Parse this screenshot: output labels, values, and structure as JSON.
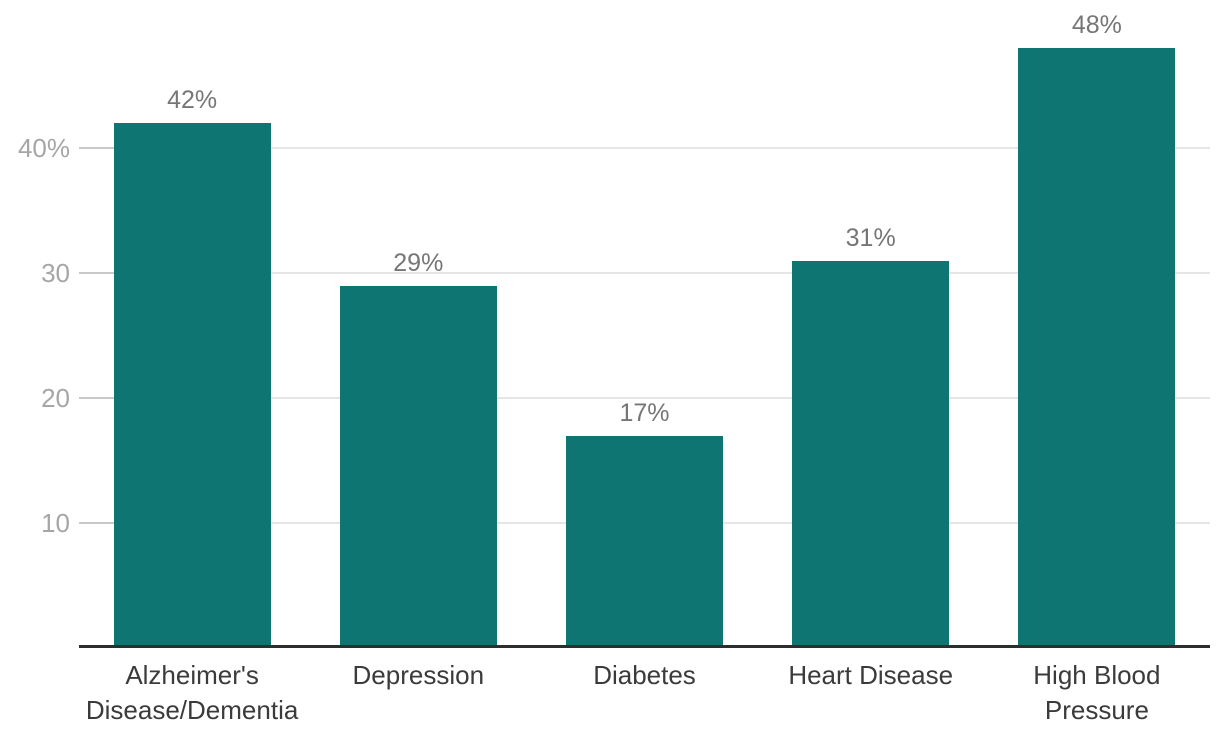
{
  "chart_data": {
    "type": "bar",
    "categories": [
      "Alzheimer's Disease/Dementia",
      "Depression",
      "Diabetes",
      "Heart Disease",
      "High Blood Pressure"
    ],
    "values": [
      42,
      29,
      17,
      31,
      48
    ],
    "data_labels": [
      "42%",
      "29%",
      "17%",
      "31%",
      "48%"
    ],
    "yticks": [
      {
        "value": 10,
        "label": "10"
      },
      {
        "value": 20,
        "label": "20"
      },
      {
        "value": 30,
        "label": "30"
      },
      {
        "value": 40,
        "label": "40%"
      }
    ],
    "ylim": [
      0,
      50
    ],
    "title": "",
    "xlabel": "",
    "ylabel": "",
    "legend_position": "none",
    "grid": "horizontal",
    "colors": {
      "bar": "#0e7573",
      "gridline": "#e5e5e5",
      "tick_mark": "#c9c9c9",
      "ytick_label": "#a6a6a6",
      "data_label": "#767676",
      "category_label": "#3b3b3b",
      "axis_line": "#2e2e2e",
      "background": "#ffffff"
    }
  }
}
